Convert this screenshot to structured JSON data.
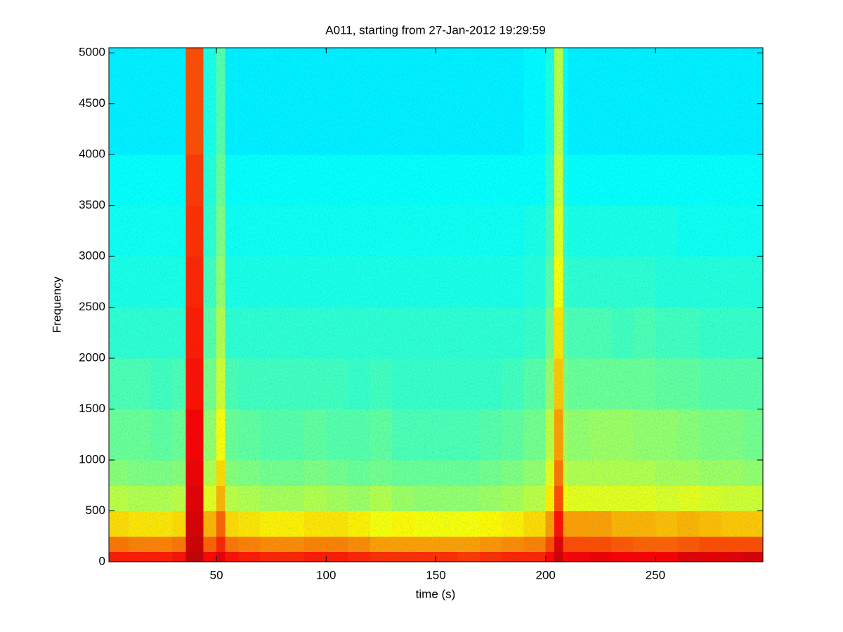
{
  "chart_data": {
    "type": "heatmap",
    "title": "A011, starting from 27-Jan-2012 19:29:59",
    "x_label": "time (s)",
    "y_label": "Frequency",
    "colormap": "jet",
    "clim": [
      0,
      1
    ],
    "xlim": [
      1,
      299
    ],
    "ylim": [
      0,
      5050
    ],
    "xticks": [
      50,
      100,
      150,
      200,
      250
    ],
    "yticks": [
      0,
      500,
      1000,
      1500,
      2000,
      2500,
      3000,
      3500,
      4000,
      4500,
      5000
    ],
    "xbins": [
      0,
      10,
      20,
      30,
      36,
      44,
      50,
      54,
      60,
      70,
      80,
      90,
      100,
      110,
      120,
      130,
      140,
      150,
      160,
      170,
      180,
      190,
      200,
      204,
      208,
      210,
      220,
      230,
      240,
      250,
      260,
      270,
      280,
      290,
      300
    ],
    "ybins": [
      0,
      100,
      250,
      500,
      750,
      1000,
      1500,
      2000,
      2500,
      3000,
      3500,
      4000,
      5050
    ],
    "z": [
      [
        0.85,
        0.85,
        0.85,
        0.86,
        0.93,
        0.87,
        0.9,
        0.86,
        0.85,
        0.84,
        0.84,
        0.85,
        0.85,
        0.84,
        0.83,
        0.83,
        0.83,
        0.83,
        0.82,
        0.83,
        0.84,
        0.84,
        0.87,
        0.92,
        0.87,
        0.88,
        0.89,
        0.88,
        0.88,
        0.88,
        0.9,
        0.9,
        0.9,
        0.91
      ],
      [
        0.76,
        0.75,
        0.75,
        0.76,
        0.92,
        0.78,
        0.84,
        0.76,
        0.75,
        0.74,
        0.74,
        0.75,
        0.75,
        0.74,
        0.72,
        0.72,
        0.72,
        0.72,
        0.72,
        0.73,
        0.74,
        0.75,
        0.8,
        0.9,
        0.8,
        0.8,
        0.8,
        0.79,
        0.78,
        0.78,
        0.79,
        0.8,
        0.8,
        0.8
      ],
      [
        0.66,
        0.65,
        0.65,
        0.66,
        0.91,
        0.7,
        0.78,
        0.66,
        0.65,
        0.64,
        0.64,
        0.65,
        0.65,
        0.64,
        0.62,
        0.63,
        0.62,
        0.62,
        0.62,
        0.63,
        0.64,
        0.66,
        0.72,
        0.86,
        0.72,
        0.72,
        0.72,
        0.7,
        0.7,
        0.69,
        0.7,
        0.69,
        0.68,
        0.68
      ],
      [
        0.56,
        0.55,
        0.55,
        0.56,
        0.9,
        0.6,
        0.7,
        0.56,
        0.55,
        0.54,
        0.54,
        0.55,
        0.54,
        0.53,
        0.55,
        0.53,
        0.52,
        0.52,
        0.52,
        0.53,
        0.54,
        0.56,
        0.64,
        0.8,
        0.62,
        0.6,
        0.6,
        0.6,
        0.6,
        0.59,
        0.6,
        0.59,
        0.58,
        0.58
      ],
      [
        0.51,
        0.5,
        0.5,
        0.51,
        0.89,
        0.55,
        0.66,
        0.51,
        0.5,
        0.49,
        0.49,
        0.5,
        0.49,
        0.48,
        0.49,
        0.48,
        0.48,
        0.48,
        0.48,
        0.49,
        0.5,
        0.52,
        0.6,
        0.76,
        0.57,
        0.55,
        0.55,
        0.55,
        0.55,
        0.54,
        0.54,
        0.53,
        0.53,
        0.52
      ],
      [
        0.48,
        0.48,
        0.47,
        0.48,
        0.88,
        0.52,
        0.62,
        0.48,
        0.47,
        0.46,
        0.46,
        0.47,
        0.46,
        0.46,
        0.47,
        0.45,
        0.45,
        0.45,
        0.45,
        0.46,
        0.47,
        0.49,
        0.56,
        0.72,
        0.54,
        0.52,
        0.53,
        0.53,
        0.52,
        0.52,
        0.51,
        0.5,
        0.5,
        0.49
      ],
      [
        0.45,
        0.45,
        0.44,
        0.45,
        0.86,
        0.49,
        0.58,
        0.45,
        0.44,
        0.44,
        0.44,
        0.44,
        0.44,
        0.43,
        0.44,
        0.43,
        0.43,
        0.43,
        0.43,
        0.43,
        0.44,
        0.46,
        0.52,
        0.68,
        0.5,
        0.48,
        0.48,
        0.48,
        0.48,
        0.47,
        0.47,
        0.46,
        0.46,
        0.46
      ],
      [
        0.42,
        0.42,
        0.42,
        0.42,
        0.85,
        0.46,
        0.55,
        0.42,
        0.42,
        0.42,
        0.42,
        0.42,
        0.42,
        0.42,
        0.42,
        0.42,
        0.42,
        0.42,
        0.42,
        0.42,
        0.42,
        0.43,
        0.49,
        0.65,
        0.47,
        0.45,
        0.45,
        0.44,
        0.45,
        0.44,
        0.44,
        0.43,
        0.43,
        0.43
      ],
      [
        0.4,
        0.4,
        0.4,
        0.4,
        0.84,
        0.44,
        0.52,
        0.4,
        0.4,
        0.4,
        0.4,
        0.4,
        0.4,
        0.4,
        0.4,
        0.4,
        0.4,
        0.4,
        0.4,
        0.4,
        0.4,
        0.41,
        0.46,
        0.62,
        0.44,
        0.42,
        0.42,
        0.42,
        0.42,
        0.41,
        0.41,
        0.41,
        0.41,
        0.41
      ],
      [
        0.39,
        0.39,
        0.39,
        0.39,
        0.83,
        0.42,
        0.5,
        0.39,
        0.39,
        0.39,
        0.39,
        0.39,
        0.39,
        0.39,
        0.39,
        0.39,
        0.39,
        0.39,
        0.39,
        0.39,
        0.39,
        0.4,
        0.44,
        0.6,
        0.42,
        0.4,
        0.4,
        0.4,
        0.4,
        0.4,
        0.39,
        0.39,
        0.39,
        0.39
      ],
      [
        0.38,
        0.38,
        0.38,
        0.38,
        0.82,
        0.41,
        0.48,
        0.38,
        0.38,
        0.38,
        0.38,
        0.38,
        0.38,
        0.38,
        0.38,
        0.38,
        0.38,
        0.38,
        0.38,
        0.38,
        0.38,
        0.38,
        0.42,
        0.58,
        0.4,
        0.38,
        0.38,
        0.38,
        0.38,
        0.38,
        0.38,
        0.38,
        0.38,
        0.38
      ],
      [
        0.36,
        0.36,
        0.36,
        0.36,
        0.8,
        0.4,
        0.46,
        0.36,
        0.36,
        0.36,
        0.36,
        0.36,
        0.36,
        0.36,
        0.36,
        0.36,
        0.36,
        0.36,
        0.36,
        0.36,
        0.36,
        0.37,
        0.4,
        0.56,
        0.38,
        0.36,
        0.36,
        0.36,
        0.36,
        0.36,
        0.36,
        0.36,
        0.36,
        0.36
      ]
    ]
  }
}
